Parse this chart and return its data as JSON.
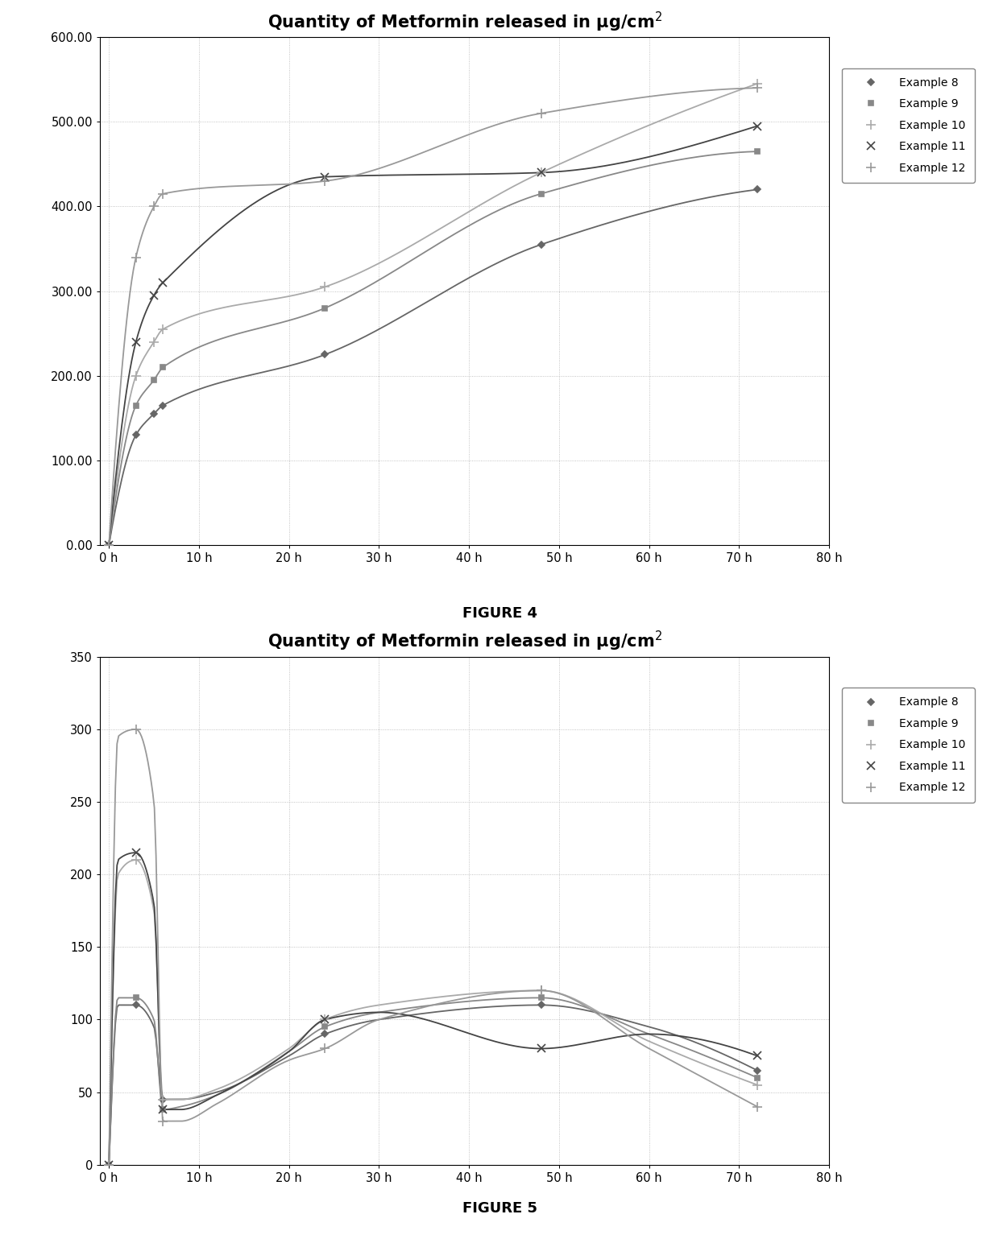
{
  "title_base": "Quantity of Metformin released in μg/cm",
  "figure4_caption": "FIGURE 4",
  "figure5_caption": "FIGURE 5",
  "x_ticks": [
    0,
    10,
    20,
    30,
    40,
    50,
    60,
    70,
    80
  ],
  "x_tick_labels": [
    "0 h",
    "10 h",
    "20 h",
    "30 h",
    "40 h",
    "50 h",
    "60 h",
    "70 h",
    "80 h"
  ],
  "x_lim": [
    -1,
    80
  ],
  "fig4_ylim": [
    0,
    600
  ],
  "fig4_yticks": [
    0,
    100,
    200,
    300,
    400,
    500,
    600
  ],
  "fig4_ytick_labels": [
    "0.00",
    "100.00",
    "200.00",
    "300.00",
    "400.00",
    "500.00",
    "600.00"
  ],
  "fig5_ylim": [
    0,
    350
  ],
  "fig5_yticks": [
    0,
    50,
    100,
    150,
    200,
    250,
    300,
    350
  ],
  "fig5_ytick_labels": [
    "0",
    "50",
    "100",
    "150",
    "200",
    "250",
    "300",
    "350"
  ],
  "series_labels": [
    "Example 8",
    "Example 9",
    "Example 10",
    "Example 11",
    "Example 12"
  ],
  "fig4_x": [
    0,
    3,
    5,
    6,
    24,
    48,
    72
  ],
  "fig4_example8": [
    0,
    130,
    155,
    165,
    225,
    355,
    420
  ],
  "fig4_example9": [
    0,
    165,
    195,
    210,
    280,
    415,
    465
  ],
  "fig4_example10": [
    0,
    200,
    240,
    255,
    305,
    440,
    545
  ],
  "fig4_example11": [
    0,
    240,
    295,
    310,
    435,
    440,
    495
  ],
  "fig4_example12": [
    0,
    340,
    400,
    415,
    430,
    510,
    540
  ],
  "fig5_x": [
    0,
    1,
    3,
    5,
    6,
    8,
    12,
    20,
    24,
    30,
    48,
    60,
    72
  ],
  "fig5_example8": [
    0,
    110,
    110,
    95,
    45,
    45,
    50,
    75,
    90,
    100,
    110,
    95,
    65
  ],
  "fig5_example9": [
    0,
    115,
    115,
    100,
    38,
    40,
    48,
    78,
    95,
    105,
    115,
    90,
    60
  ],
  "fig5_example10": [
    0,
    200,
    210,
    175,
    45,
    45,
    52,
    80,
    100,
    110,
    120,
    85,
    55
  ],
  "fig5_example11": [
    0,
    210,
    215,
    180,
    38,
    38,
    48,
    78,
    100,
    105,
    80,
    90,
    75
  ],
  "fig5_example12": [
    0,
    295,
    300,
    250,
    30,
    30,
    42,
    72,
    80,
    100,
    120,
    80,
    40
  ],
  "colors_fig4": [
    "#666666",
    "#888888",
    "#aaaaaa",
    "#444444",
    "#999999"
  ],
  "colors_fig5": [
    "#666666",
    "#888888",
    "#aaaaaa",
    "#444444",
    "#999999"
  ],
  "markers_fig4": [
    "D",
    "s",
    "+",
    "x",
    "+"
  ],
  "markers_fig5": [
    "D",
    "s",
    "+",
    "x",
    "+"
  ],
  "background_color": "#ffffff",
  "grid_color": "#bbbbbb"
}
